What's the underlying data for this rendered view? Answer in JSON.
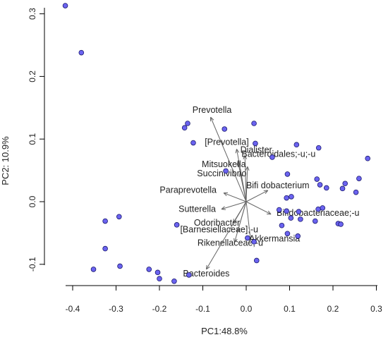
{
  "chart_data": {
    "type": "scatter",
    "subtype": "PCA biplot",
    "xlabel": "PC1:48.8%",
    "ylabel": "PC2: 10.9%",
    "xlim": [
      -0.43,
      0.3
    ],
    "ylim": [
      -0.135,
      0.33
    ],
    "x_ticks": [
      -0.4,
      -0.3,
      -0.2,
      -0.1,
      0.0,
      0.1,
      0.2,
      0.3
    ],
    "x_tick_labels": [
      "-0.4",
      "-0.3",
      "-0.2",
      "-0.1",
      "0.0",
      "0.1",
      "0.2",
      "0.3"
    ],
    "y_ticks": [
      -0.1,
      0.0,
      0.1,
      0.2,
      0.3
    ],
    "y_tick_labels": [
      "-0.1",
      "0.0",
      "0.1",
      "0.2",
      "0.3"
    ],
    "grid": false,
    "point_color": "#6b63f0",
    "point_edge_color": "#1a1a6e",
    "arrow_color": "#666666",
    "points": [
      {
        "x": -0.417,
        "y": 0.313
      },
      {
        "x": -0.38,
        "y": 0.238
      },
      {
        "x": -0.325,
        "y": -0.031
      },
      {
        "x": -0.293,
        "y": -0.024
      },
      {
        "x": -0.325,
        "y": -0.075
      },
      {
        "x": -0.352,
        "y": -0.108
      },
      {
        "x": -0.291,
        "y": -0.103
      },
      {
        "x": -0.224,
        "y": -0.108
      },
      {
        "x": -0.204,
        "y": -0.113
      },
      {
        "x": -0.2,
        "y": -0.123
      },
      {
        "x": -0.166,
        "y": -0.127
      },
      {
        "x": -0.132,
        "y": -0.117
      },
      {
        "x": -0.16,
        "y": -0.037
      },
      {
        "x": -0.135,
        "y": 0.125
      },
      {
        "x": -0.142,
        "y": 0.118
      },
      {
        "x": -0.122,
        "y": 0.094
      },
      {
        "x": -0.05,
        "y": 0.116
      },
      {
        "x": 0.018,
        "y": 0.125
      },
      {
        "x": 0.021,
        "y": 0.093
      },
      {
        "x": -0.047,
        "y": 0.049
      },
      {
        "x": 0.06,
        "y": 0.071
      },
      {
        "x": 0.116,
        "y": 0.091
      },
      {
        "x": 0.167,
        "y": 0.086
      },
      {
        "x": 0.28,
        "y": 0.069
      },
      {
        "x": 0.095,
        "y": 0.044
      },
      {
        "x": 0.163,
        "y": 0.036
      },
      {
        "x": 0.17,
        "y": 0.027
      },
      {
        "x": 0.185,
        "y": 0.022
      },
      {
        "x": 0.104,
        "y": 0.008
      },
      {
        "x": 0.093,
        "y": 0.006
      },
      {
        "x": 0.228,
        "y": 0.029
      },
      {
        "x": 0.222,
        "y": 0.021
      },
      {
        "x": 0.26,
        "y": 0.037
      },
      {
        "x": 0.253,
        "y": 0.015
      },
      {
        "x": 0.076,
        "y": -0.013
      },
      {
        "x": 0.093,
        "y": -0.015
      },
      {
        "x": 0.121,
        "y": -0.016
      },
      {
        "x": 0.166,
        "y": -0.012
      },
      {
        "x": 0.176,
        "y": -0.01
      },
      {
        "x": 0.082,
        "y": -0.038
      },
      {
        "x": 0.103,
        "y": -0.026
      },
      {
        "x": 0.125,
        "y": -0.028
      },
      {
        "x": 0.159,
        "y": -0.031
      },
      {
        "x": 0.212,
        "y": -0.035
      },
      {
        "x": 0.218,
        "y": -0.036
      },
      {
        "x": 0.095,
        "y": -0.051
      },
      {
        "x": 0.119,
        "y": -0.055
      },
      {
        "x": 0.003,
        "y": -0.058
      },
      {
        "x": 0.018,
        "y": -0.064
      },
      {
        "x": 0.024,
        "y": -0.094
      }
    ],
    "loadings": [
      {
        "label": "Prevotella",
        "x": -0.082,
        "y": 0.135
      },
      {
        "label": "[Prevotella]",
        "x": -0.022,
        "y": 0.084
      },
      {
        "label": "Dialister",
        "x": -0.003,
        "y": 0.074
      },
      {
        "label": "Mitsuokella",
        "x": -0.019,
        "y": 0.064
      },
      {
        "label": "Bacteroidales;-u;-u",
        "x": 0.003,
        "y": 0.056
      },
      {
        "label": "Succinivibrio",
        "x": -0.014,
        "y": 0.046
      },
      {
        "label": "Bifi dobacterium",
        "x": 0.05,
        "y": 0.018
      },
      {
        "label": "Paraprevotella",
        "x": -0.052,
        "y": 0.014
      },
      {
        "label": "Sutterella",
        "x": -0.057,
        "y": -0.012
      },
      {
        "label": "Bifidobacteriaceae;-u",
        "x": 0.057,
        "y": -0.02
      },
      {
        "label": "Odoribacter",
        "x": -0.03,
        "y": -0.034
      },
      {
        "label": "[Barnesiellaceae];-u",
        "x": -0.02,
        "y": -0.048
      },
      {
        "label": "Akkermansia",
        "x": 0.01,
        "y": -0.06
      },
      {
        "label": "Rikenellaceae;-u",
        "x": -0.027,
        "y": -0.065
      },
      {
        "label": "Bacteroides",
        "x": -0.092,
        "y": -0.108
      }
    ]
  }
}
